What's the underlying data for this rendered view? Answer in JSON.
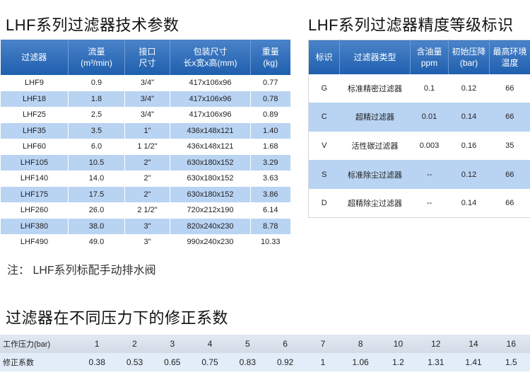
{
  "spec": {
    "title": "LHF系列过滤器技术参数",
    "headers": [
      "过滤器",
      "流量",
      "(m³/min)",
      "接口",
      "尺寸",
      "包装尺寸",
      "长x宽x高(mm)",
      "重量",
      "(kg)"
    ],
    "rows": [
      [
        "LHF9",
        "0.9",
        "3/4\"",
        "417x106x96",
        "0.77"
      ],
      [
        "LHF18",
        "1.8",
        "3/4\"",
        "417x106x96",
        "0.78"
      ],
      [
        "LHF25",
        "2.5",
        "3/4\"",
        "417x106x96",
        "0.89"
      ],
      [
        "LHF35",
        "3.5",
        "1\"",
        "436x148x121",
        "1.40"
      ],
      [
        "LHF60",
        "6.0",
        "1 1/2\"",
        "436x148x121",
        "1.68"
      ],
      [
        "LHF105",
        "10.5",
        "2\"",
        "630x180x152",
        "3.29"
      ],
      [
        "LHF140",
        "14.0",
        "2\"",
        "630x180x152",
        "3.63"
      ],
      [
        "LHF175",
        "17.5",
        "2\"",
        "630x180x152",
        "3.86"
      ],
      [
        "LHF260",
        "26.0",
        "2 1/2\"",
        "720x212x190",
        "6.14"
      ],
      [
        "LHF380",
        "38.0",
        "3\"",
        "820x240x230",
        "8.78"
      ],
      [
        "LHF490",
        "49.0",
        "3\"",
        "990x240x230",
        "10.33"
      ]
    ],
    "note": "注： LHF系列标配手动排水阀"
  },
  "grade": {
    "title": "LHF系列过滤器精度等级标识",
    "headers": [
      "标识",
      "过滤器类型",
      "含油量",
      "ppm",
      "初始压降",
      "(bar)",
      "最高环境",
      "温度"
    ],
    "rows": [
      [
        "G",
        "标准精密过滤器",
        "0.1",
        "0.12",
        "66"
      ],
      [
        "C",
        "超精过滤器",
        "0.01",
        "0.14",
        "66"
      ],
      [
        "V",
        "活性碳过滤器",
        "0.003",
        "0.16",
        "35"
      ],
      [
        "S",
        "标准除尘过滤器",
        "--",
        "0.12",
        "66"
      ],
      [
        "D",
        "超精除尘过滤器",
        "--",
        "0.14",
        "66"
      ]
    ]
  },
  "correction": {
    "title": "过滤器在不同压力下的修正系数",
    "pressure_label": "工作压力(bar)",
    "pressures": [
      "1",
      "2",
      "3",
      "4",
      "5",
      "6",
      "7",
      "8",
      "10",
      "12",
      "14",
      "16"
    ],
    "factor_label": "修正系数",
    "factors": [
      "0.38",
      "0.53",
      "0.65",
      "0.75",
      "0.83",
      "0.92",
      "1",
      "1.06",
      "1.2",
      "1.31",
      "1.41",
      "1.5"
    ]
  }
}
